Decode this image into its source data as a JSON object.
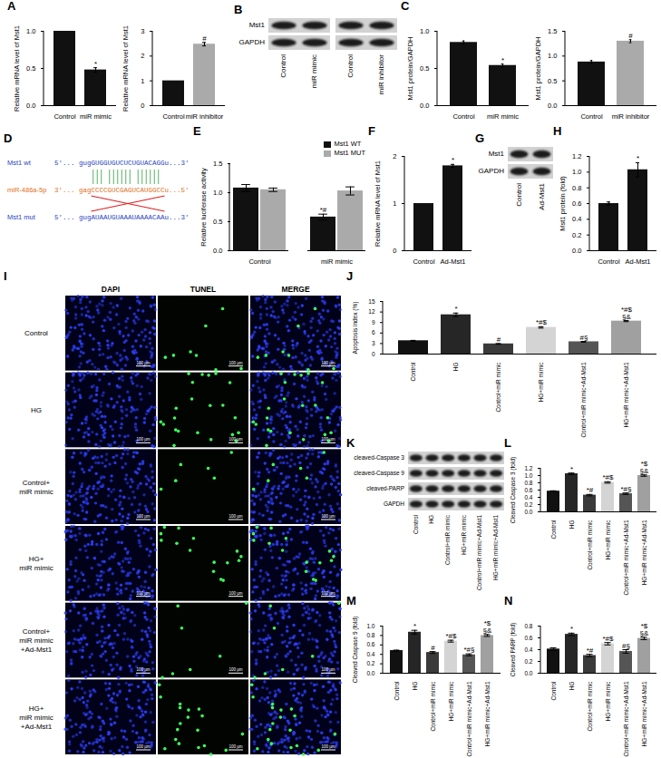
{
  "chart_data": [
    {
      "panel": "A",
      "type": "bar",
      "ylabel": "Relative mRNA level of Mst1",
      "categories": [
        "Control",
        "miR mimic"
      ],
      "values": [
        1.0,
        0.48
      ],
      "errors": [
        0,
        0.03
      ],
      "colors": [
        "#111111",
        "#111111"
      ],
      "annotations": [
        null,
        "*"
      ],
      "ylim": [
        0,
        1
      ],
      "yticks": [
        {
          "value": 0,
          "label": "0.0"
        },
        0.5,
        {
          "value": 1,
          "label": "1.0"
        }
      ]
    },
    {
      "type": "bar",
      "ylabel": "Relative mRNA level of Mst1",
      "categories": [
        "Control",
        "miR inhibitor"
      ],
      "values": [
        1.0,
        2.48
      ],
      "errors": [
        0,
        0.07
      ],
      "colors": [
        "#111111",
        "#aaaaaa"
      ],
      "annotations": [
        null,
        "#"
      ],
      "ylim": [
        0,
        3
      ],
      "yticks": [
        0,
        1,
        2,
        3
      ]
    },
    {
      "panel": "C",
      "type": "bar",
      "ylabel": "Mst1 protein/GAPDH",
      "categories": [
        "Control",
        "miR mimic"
      ],
      "values": [
        0.85,
        0.54
      ],
      "errors": [
        0.02,
        0.02
      ],
      "colors": [
        "#111111",
        "#111111"
      ],
      "annotations": [
        null,
        "*"
      ],
      "ylim": [
        0,
        1
      ],
      "yticks": [
        {
          "value": 0,
          "label": "0.0"
        },
        0.5,
        {
          "value": 1,
          "label": "1.0"
        }
      ]
    },
    {
      "type": "bar",
      "ylabel": "Mst1 protein/GAPDH",
      "categories": [
        "Control",
        "miR inhibitor"
      ],
      "values": [
        0.88,
        1.3
      ],
      "errors": [
        0.03,
        0.03
      ],
      "colors": [
        "#111111",
        "#aaaaaa"
      ],
      "annotations": [
        null,
        "#"
      ],
      "ylim": [
        0,
        1.5
      ],
      "yticks": [
        {
          "value": 0,
          "label": "0.0"
        },
        0.5,
        {
          "value": 1,
          "label": "1.0"
        },
        1.5
      ]
    },
    {
      "panel": "E",
      "type": "bar",
      "ylabel": "Relative luciferase activity",
      "categories": [
        "Control",
        "miR mimic"
      ],
      "series": [
        {
          "name": "Mst1 WT",
          "color": "#111111",
          "values": [
            1.08,
            0.58
          ],
          "errors": [
            0.06,
            0.05
          ],
          "annotations": [
            null,
            "*#"
          ]
        },
        {
          "name": "Mst1 MUT",
          "color": "#aaaaaa",
          "values": [
            1.05,
            1.03
          ],
          "errors": [
            0.03,
            0.07
          ],
          "annotations": [
            null,
            null
          ]
        }
      ],
      "legend": "top-right",
      "ylim": [
        0,
        1.5
      ],
      "yticks": [
        {
          "value": 0,
          "label": "0.0"
        },
        0.5,
        {
          "value": 1,
          "label": "1.0"
        },
        1.5
      ]
    },
    {
      "panel": "F",
      "type": "bar",
      "ylabel": "Relative mRNA level of Mst1",
      "categories": [
        "Control",
        "Ad-Mst1"
      ],
      "values": [
        1.0,
        1.8
      ],
      "errors": [
        0,
        0.03
      ],
      "colors": [
        "#111111",
        "#111111"
      ],
      "annotations": [
        null,
        "*"
      ],
      "ylim": [
        0,
        2
      ],
      "yticks": [
        0,
        1,
        2
      ]
    },
    {
      "panel": "H",
      "type": "bar",
      "ylabel": "Mst1 protein (fold)",
      "categories": [
        "Control",
        "Ad-Mst1"
      ],
      "values": [
        0.6,
        1.03
      ],
      "errors": [
        0.02,
        0.09
      ],
      "colors": [
        "#111111",
        "#111111"
      ],
      "annotations": [
        null,
        "*"
      ],
      "ylim": [
        0,
        1.2
      ],
      "yticks": [
        {
          "value": 0,
          "label": "0.0"
        },
        0.2,
        0.4,
        0.6,
        0.8,
        {
          "value": 1,
          "label": "1.0"
        },
        1.2
      ]
    },
    {
      "panel": "J",
      "type": "bar",
      "ylabel": "Apoptosis index (%)",
      "categories": [
        "Control",
        "HG",
        "Control+miR mimic",
        "HG+miR mimic",
        "Control+miR mimic+Ad-Mst1",
        "HG+miR mimic+Ad-Mst1"
      ],
      "values": [
        3.8,
        11.2,
        2.9,
        7.6,
        3.5,
        9.4
      ],
      "errors": [
        0.1,
        0.5,
        0.1,
        0.2,
        0.1,
        0.15
      ],
      "colors": [
        "#111111",
        "#262626",
        "#3a3a3a",
        "#d4d4d4",
        "#555555",
        "#a0a0a0"
      ],
      "annotations": [
        null,
        "*",
        "#",
        "*#$",
        "#§",
        "*#$\n§&"
      ],
      "ylim": [
        0,
        15
      ],
      "yticks": [
        0,
        3,
        6,
        9,
        12,
        15
      ]
    },
    {
      "panel": "L",
      "type": "bar",
      "ylabel": "Cleaved Caspase 3 (fold)",
      "categories": [
        "Control",
        "HG",
        "Control+miR mimic",
        "HG+miR mimic",
        "Control+miR mimic+Ad-Mst1",
        "HG+miR mimic+Ad-Mst1"
      ],
      "values": [
        0.57,
        1.05,
        0.46,
        0.81,
        0.5,
        1.0
      ],
      "errors": [
        0.01,
        0.02,
        0.02,
        0.02,
        0.02,
        0.02
      ],
      "colors": [
        "#111111",
        "#262626",
        "#3a3a3a",
        "#d4d4d4",
        "#555555",
        "#a0a0a0"
      ],
      "annotations": [
        null,
        "*",
        "*#",
        "*#$",
        "*#§",
        "*$\n§&"
      ],
      "ylim": [
        0,
        1.2
      ],
      "yticks": [
        {
          "value": 0,
          "label": "0.0"
        },
        0.2,
        0.4,
        0.6,
        0.8,
        {
          "value": 1,
          "label": "1.0"
        },
        1.2
      ]
    },
    {
      "panel": "M",
      "type": "bar",
      "ylabel": "Cleaved Caspase 9 (fold)",
      "categories": [
        "Control",
        "HG",
        "Control+miR mimic",
        "HG+miR mimic",
        "Control+miR mimic+Ad-Mst1",
        "HG+miR mimic+Ad-Mst1"
      ],
      "values": [
        0.48,
        0.87,
        0.44,
        0.68,
        0.39,
        0.8
      ],
      "errors": [
        0.01,
        0.04,
        0.02,
        0.02,
        0.02,
        0.02
      ],
      "colors": [
        "#111111",
        "#262626",
        "#3a3a3a",
        "#d4d4d4",
        "#555555",
        "#a0a0a0"
      ],
      "annotations": [
        null,
        "*",
        "#",
        "*#$",
        "*#§",
        "*$\n§&"
      ],
      "ylim": [
        0,
        1
      ],
      "yticks": [
        {
          "value": 0,
          "label": "0.0"
        },
        0.2,
        0.4,
        0.6,
        0.8,
        {
          "value": 1,
          "label": "1.0"
        }
      ]
    },
    {
      "panel": "N",
      "type": "bar",
      "ylabel": "Cleaved PARP (fold)",
      "categories": [
        "Control",
        "HG",
        "Control+miR mimic",
        "HG+miR mimic",
        "Control+miR mimic+Ad-Mst1",
        "HG+miR mimic+Ad-Mst1"
      ],
      "values": [
        0.41,
        0.66,
        0.3,
        0.5,
        0.37,
        0.59
      ],
      "errors": [
        0.02,
        0.02,
        0.02,
        0.02,
        0.03,
        0.02
      ],
      "colors": [
        "#111111",
        "#262626",
        "#3a3a3a",
        "#d4d4d4",
        "#555555",
        "#a0a0a0"
      ],
      "annotations": [
        null,
        "*",
        "*#",
        "*#$",
        "#§",
        "*$\n§&"
      ],
      "ylim": [
        0,
        0.8
      ],
      "yticks": [
        {
          "value": 0,
          "label": "0.0"
        },
        0.2,
        0.4,
        0.6,
        0.8
      ]
    }
  ],
  "blots": [
    {
      "panel": "B",
      "rows": [
        "Mst1",
        "GAPDH"
      ],
      "groups": [
        [
          "Control",
          "miR mimic"
        ],
        [
          "Control",
          "miR inhibitor"
        ]
      ]
    },
    {
      "panel": "G",
      "rows": [
        "Mst1",
        "GAPDH"
      ],
      "groups": [
        [
          "Control",
          "Ad-Mst1"
        ]
      ]
    },
    {
      "panel": "K",
      "rows": [
        "cleaved-Caspase 3",
        "cleaved-Caspase 9",
        "cleaved-PARP",
        "GAPDH"
      ],
      "groups": [
        [
          "Control",
          "HG",
          "Control+miR mimic",
          "HG+miR mimic",
          "Control+miR mimic+Ad-Mst1",
          "HG+miR mimic+Ad-Mst1"
        ]
      ]
    }
  ],
  "sequences": {
    "panel": "D",
    "rows": [
      {
        "name": "Mst1 wt",
        "color": "#1f3fbf",
        "sequence": "5'... gugGUGGUGUCUCUGUACAGGu...3'"
      },
      {
        "name": "miR-486a-5p",
        "color": "#e07020",
        "sequence": "3'... gagCCCCGUCGAGUCAUGGCCu...5'"
      },
      {
        "name": "Mst1 mut",
        "color": "#1f3fbf",
        "sequence": "5'... gugAUAAUGUAAAUAAAACAAu...3'"
      }
    ]
  },
  "images": {
    "panel": "I",
    "columns": [
      "DAPI",
      "TUNEL",
      "MERGE"
    ],
    "rows": [
      [
        "Control"
      ],
      [
        "HG"
      ],
      [
        "Control+",
        "miR mimic"
      ],
      [
        "HG+",
        "miR mimic"
      ],
      [
        "Control+",
        "miR mimic",
        "+Ad-Mst1"
      ],
      [
        "HG+",
        "miR mimic",
        "+Ad-Mst1"
      ]
    ],
    "scale_bar": "100 µm"
  }
}
